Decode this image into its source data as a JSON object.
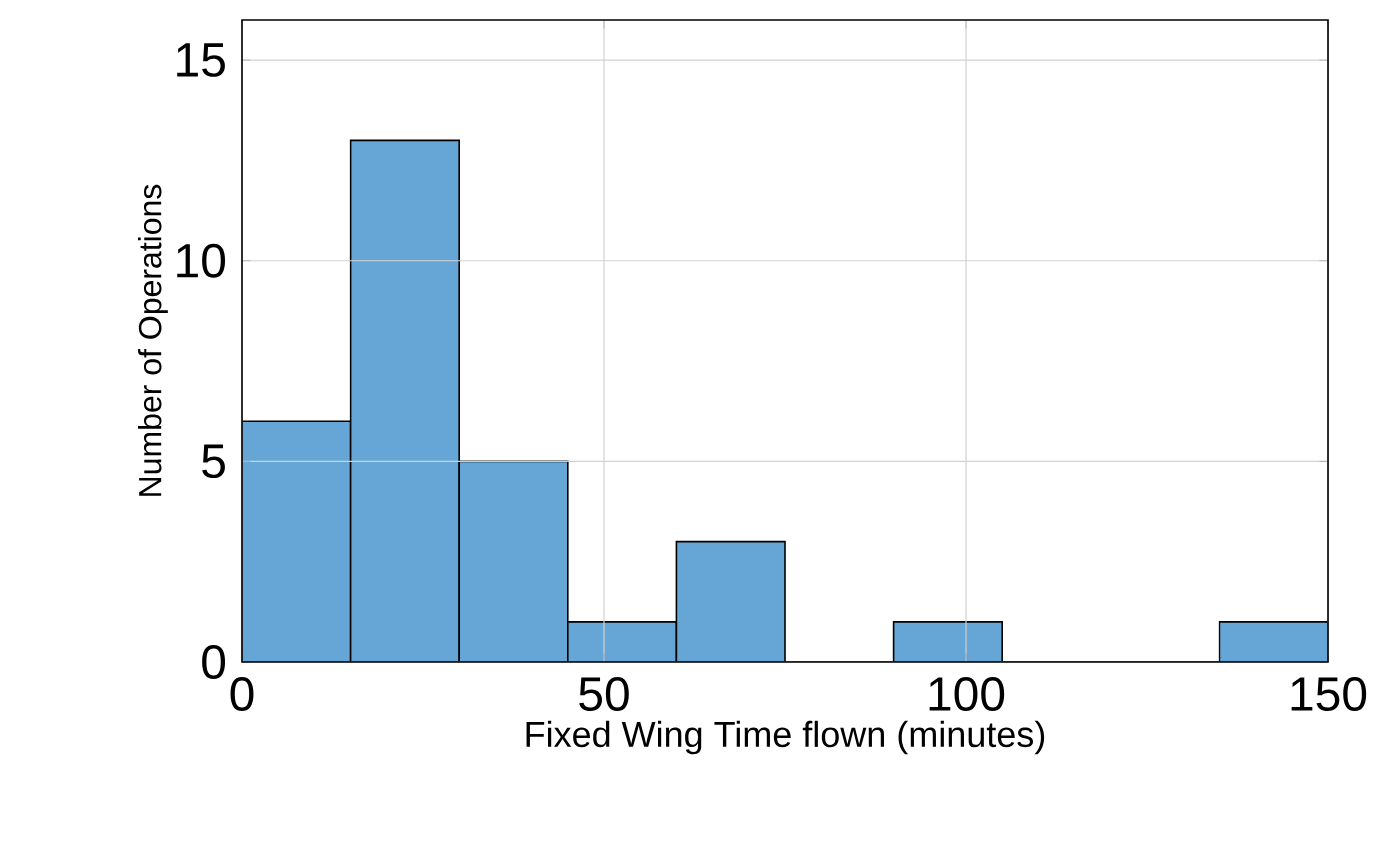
{
  "chart_data": {
    "type": "histogram",
    "xlabel": "Fixed Wing Time flown (minutes)",
    "ylabel": "Number of Operations",
    "bins": [
      0,
      15,
      30,
      45,
      60,
      75,
      90,
      105,
      120,
      135,
      150
    ],
    "values": [
      6,
      13,
      5,
      1,
      3,
      0,
      1,
      0,
      0,
      1
    ],
    "color": "#65a6d6",
    "xlim": [
      0,
      150
    ],
    "ylim": [
      0,
      16
    ],
    "xticks": [
      0,
      50,
      100,
      150
    ],
    "yticks": [
      0,
      5,
      10,
      15
    ],
    "grid": true
  }
}
